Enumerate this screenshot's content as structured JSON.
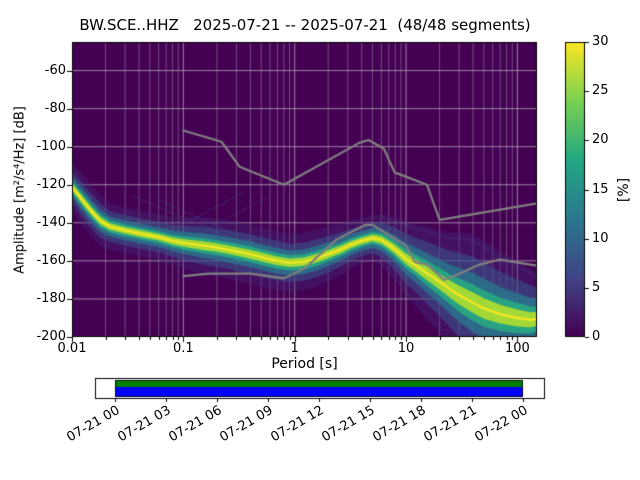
{
  "chart_data": {
    "type": "heatmap",
    "title": "BW.SCE..HHZ   2025-07-21 -- 2025-07-21  (48/48 segments)",
    "xlabel": "Period [s]",
    "ylabel": "Amplitude [m²/s⁴/Hz] [dB]",
    "xscale": "log",
    "xlim": [
      0.01,
      150
    ],
    "ylim": [
      -200,
      -45
    ],
    "x_ticks": [
      0.01,
      0.1,
      1,
      10,
      100
    ],
    "x_tick_labels": [
      "0.01",
      "0.1",
      "1",
      "10",
      "100"
    ],
    "y_ticks": [
      -60,
      -80,
      -100,
      -120,
      -140,
      -160,
      -180,
      -200
    ],
    "y_tick_labels": [
      "-60",
      "-80",
      "-100",
      "-120",
      "-140",
      "-160",
      "-180",
      "-200"
    ],
    "background_color": "#440154",
    "grid": {
      "color": "#bdbdbd",
      "major_alpha": 0.7,
      "minor_alpha": 0.4
    },
    "noise_models": {
      "color": "#808080",
      "nhnm": [
        [
          0.1,
          -91.5
        ],
        [
          0.22,
          -97.4
        ],
        [
          0.32,
          -110.5
        ],
        [
          0.8,
          -120.0
        ],
        [
          3.8,
          -98.0
        ],
        [
          4.6,
          -96.5
        ],
        [
          6.3,
          -101.0
        ],
        [
          7.9,
          -113.5
        ],
        [
          15.4,
          -120.0
        ],
        [
          20.0,
          -138.5
        ],
        [
          354.8,
          -126.0
        ]
      ],
      "nlnm": [
        [
          0.1,
          -168.0
        ],
        [
          0.17,
          -166.7
        ],
        [
          0.4,
          -166.7
        ],
        [
          0.8,
          -169.2
        ],
        [
          1.24,
          -163.7
        ],
        [
          2.4,
          -148.6
        ],
        [
          4.3,
          -141.1
        ],
        [
          5.0,
          -141.1
        ],
        [
          6.0,
          -144.0
        ],
        [
          10.0,
          -152.1
        ],
        [
          12.0,
          -160.5
        ],
        [
          15.6,
          -162.1
        ],
        [
          21.9,
          -170.0
        ],
        [
          31.6,
          -166.2
        ],
        [
          45.0,
          -162.1
        ],
        [
          70.0,
          -159.3
        ],
        [
          101.0,
          -160.9
        ],
        [
          154.0,
          -162.6
        ],
        [
          328.0,
          -173.2
        ]
      ]
    },
    "ppsd_band": {
      "points": [
        [
          0.01,
          -121,
          4
        ],
        [
          0.012,
          -127,
          4.5
        ],
        [
          0.015,
          -134,
          4.5
        ],
        [
          0.018,
          -139,
          4.5
        ],
        [
          0.022,
          -142,
          4
        ],
        [
          0.03,
          -144,
          4
        ],
        [
          0.04,
          -145.5,
          4
        ],
        [
          0.06,
          -147.5,
          4
        ],
        [
          0.08,
          -149.5,
          4.2
        ],
        [
          0.1,
          -150.5,
          4.5
        ],
        [
          0.15,
          -152,
          5
        ],
        [
          0.2,
          -153,
          5
        ],
        [
          0.3,
          -155,
          5.2
        ],
        [
          0.4,
          -156.5,
          5.2
        ],
        [
          0.5,
          -158,
          5.2
        ],
        [
          0.7,
          -160,
          5.2
        ],
        [
          0.9,
          -161,
          5
        ],
        [
          1.2,
          -160.5,
          5
        ],
        [
          1.6,
          -158.5,
          5
        ],
        [
          2,
          -156.5,
          4.8
        ],
        [
          2.6,
          -154,
          4.5
        ],
        [
          3.2,
          -151.5,
          4.2
        ],
        [
          4,
          -149.5,
          4
        ],
        [
          5,
          -148,
          4
        ],
        [
          6,
          -149,
          4.5
        ],
        [
          7,
          -151.5,
          5
        ],
        [
          8,
          -154,
          5.5
        ],
        [
          10,
          -159,
          6.5
        ],
        [
          12,
          -162,
          7
        ],
        [
          15,
          -166,
          8
        ],
        [
          20,
          -171,
          9
        ],
        [
          25,
          -175,
          10
        ],
        [
          30,
          -178,
          11
        ],
        [
          40,
          -182,
          12
        ],
        [
          50,
          -185,
          12
        ],
        [
          70,
          -188,
          11
        ],
        [
          100,
          -190,
          10
        ],
        [
          130,
          -191,
          9
        ],
        [
          150,
          -190.5,
          8
        ]
      ],
      "layers": [
        {
          "mult": 3.0,
          "color": "#46327e",
          "alpha": 0.35
        },
        {
          "mult": 2.0,
          "color": "#365c8d",
          "alpha": 0.5
        },
        {
          "mult": 1.3,
          "color": "#277f8e",
          "alpha": 0.7
        },
        {
          "mult": 0.8,
          "color": "#27ad81",
          "alpha": 0.85
        },
        {
          "mult": 0.45,
          "color": "#aadc32",
          "alpha": 0.95
        }
      ],
      "mode_color": "#fde725",
      "mode_glow_color": "#b5de2b",
      "fan_offsets": [
        -1.2,
        1.4,
        2.0,
        2.7
      ],
      "fan_min_period": 6,
      "fan_color": "#3b528b",
      "fan_alpha": 0.4,
      "faint_lines": [
        [
          [
            0.05,
            -150
          ],
          [
            0.35,
            -124
          ]
        ],
        [
          [
            0.08,
            -153
          ],
          [
            0.55,
            -127
          ]
        ],
        [
          [
            0.035,
            -126
          ],
          [
            0.4,
            -152
          ]
        ],
        [
          [
            0.06,
            -128
          ],
          [
            0.7,
            -156
          ]
        ]
      ],
      "faint_color": "#414487",
      "faint_alpha": 0.45
    },
    "colorbar": {
      "label": "[%]",
      "min": 0,
      "max": 30,
      "ticks": [
        0,
        5,
        10,
        15,
        20,
        25,
        30
      ],
      "tick_labels": [
        "0",
        "5",
        "10",
        "15",
        "20",
        "25",
        "30"
      ],
      "stops": [
        "#440154",
        "#414487",
        "#2a788e",
        "#22a884",
        "#7ad151",
        "#fde725"
      ]
    },
    "timeline": {
      "tick_labels": [
        "07-21 00",
        "07-21 03",
        "07-21 06",
        "07-21 09",
        "07-21 12",
        "07-21 15",
        "07-21 18",
        "07-21 21",
        "07-22 00"
      ],
      "box_color": "#ffffff",
      "border_color": "#000000",
      "processed_color": "#008000",
      "coverage_color": "#0000ff"
    }
  }
}
